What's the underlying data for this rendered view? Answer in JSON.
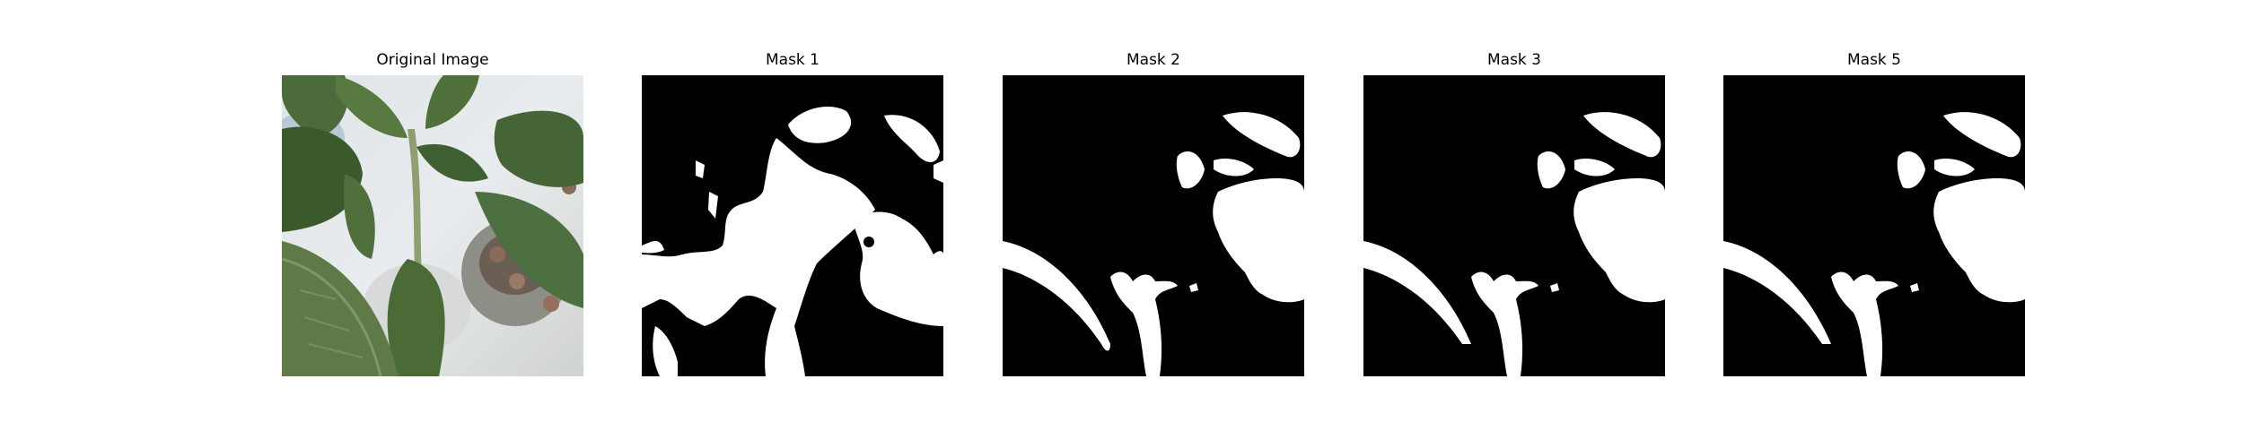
{
  "figure": {
    "panels": [
      {
        "title": "Original Image"
      },
      {
        "title": "Mask 1"
      },
      {
        "title": "Mask 2"
      },
      {
        "title": "Mask 3"
      },
      {
        "title": "Mask 5"
      }
    ]
  },
  "colors": {
    "background": "#ffffff",
    "mask_foreground": "#ffffff",
    "mask_background": "#000000"
  }
}
